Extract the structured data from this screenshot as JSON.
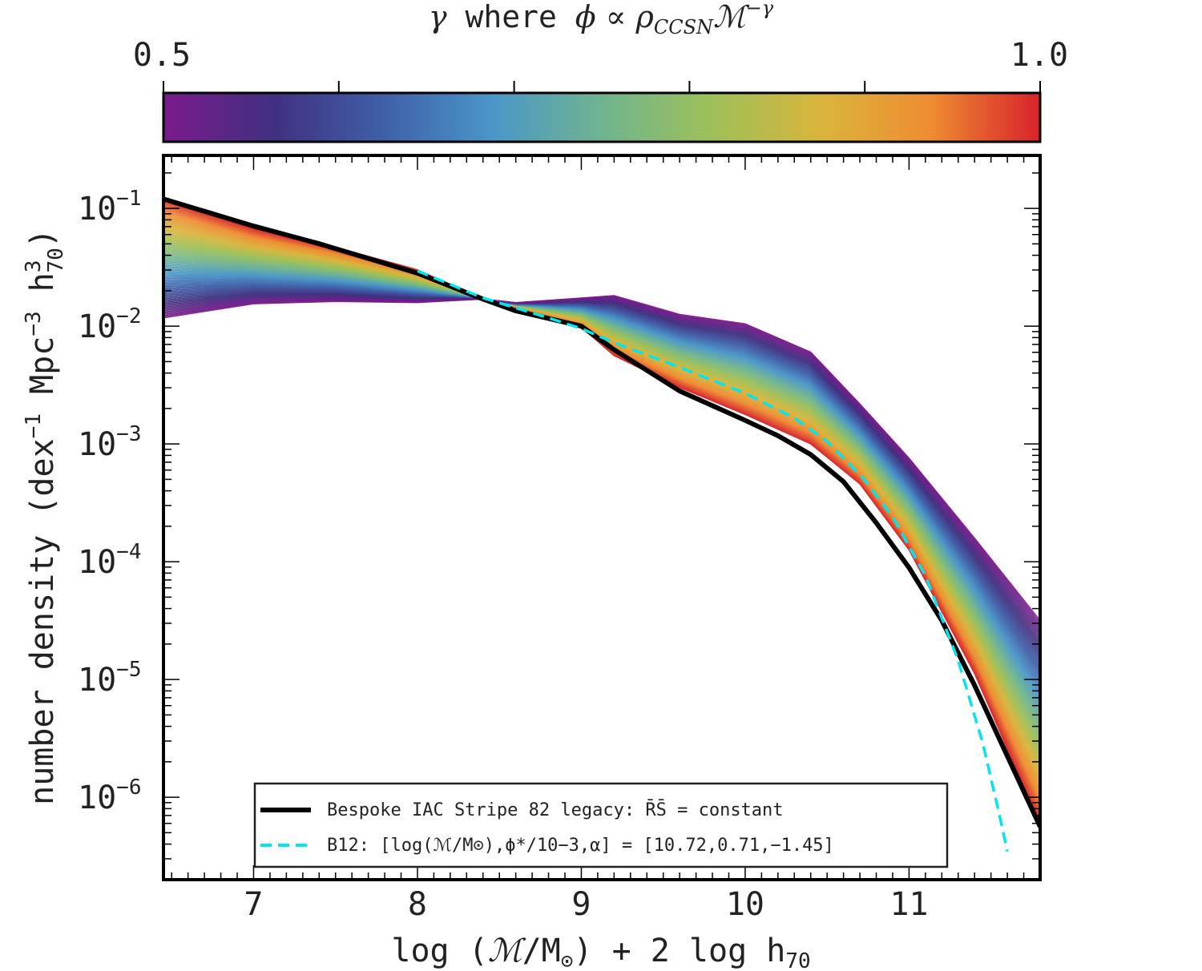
{
  "chart_data": {
    "type": "line",
    "xlabel": "log (ℳ/M⊙) + 2 log h70",
    "ylabel": "number density (dex−1 Mpc−3 h370)",
    "xlim": [
      6.45,
      11.8
    ],
    "ylim_log10": [
      -6.7,
      -0.55
    ],
    "y_scale": "log",
    "grid": false,
    "x_ticks": [
      {
        "v": 7,
        "label": "7"
      },
      {
        "v": 8,
        "label": "8"
      },
      {
        "v": 9,
        "label": "9"
      },
      {
        "v": 10,
        "label": "10"
      },
      {
        "v": 11,
        "label": "11"
      }
    ],
    "y_ticks": [
      {
        "exp": -1,
        "base": "10",
        "sup": "−1"
      },
      {
        "exp": -2,
        "base": "10",
        "sup": "−2"
      },
      {
        "exp": -3,
        "base": "10",
        "sup": "−3"
      },
      {
        "exp": -4,
        "base": "10",
        "sup": "−4"
      },
      {
        "exp": -5,
        "base": "10",
        "sup": "−5"
      },
      {
        "exp": -6,
        "base": "10",
        "sup": "−6"
      }
    ],
    "colorbar": {
      "label": "γ where ϕ ∝ ρCCSN ℳ−γ",
      "min": 0.5,
      "max": 1.0,
      "min_label": "0.5",
      "max_label": "1.0",
      "colormap": "Spectral_r",
      "stops": [
        "#7b1a8c",
        "#41307f",
        "#3f5fa8",
        "#4a96c8",
        "#6fb490",
        "#9dc058",
        "#d9b43c",
        "#ee8c32",
        "#d8222a"
      ]
    },
    "gamma_family_x": [
      6.45,
      7.0,
      7.5,
      8.0,
      8.4,
      8.6,
      9.0,
      9.2,
      9.6,
      10.0,
      10.4,
      10.7,
      11.0,
      11.4,
      11.8
    ],
    "gamma_family_y_at_gamma_1": [
      -0.91,
      -1.17,
      -1.33,
      -1.52,
      -1.77,
      -1.84,
      -2.01,
      -2.25,
      -2.52,
      -2.75,
      -3.0,
      -3.34,
      -3.9,
      -4.95,
      -6.23
    ],
    "gamma_family_y_at_gamma_0_5": [
      -1.93,
      -1.81,
      -1.79,
      -1.8,
      -1.77,
      -1.8,
      -1.76,
      -1.74,
      -1.9,
      -1.98,
      -2.22,
      -2.66,
      -3.12,
      -3.8,
      -4.5
    ],
    "series": [
      {
        "name": "Bespoke IAC Stripe 82 legacy: R̄S̄ = constant",
        "style": "solid",
        "color": "#000000",
        "x": [
          6.45,
          7.0,
          7.4,
          8.0,
          8.4,
          8.6,
          9.0,
          9.2,
          9.6,
          10.0,
          10.2,
          10.4,
          10.6,
          10.8,
          11.0,
          11.2,
          11.4,
          11.6,
          11.8
        ],
        "y": [
          -0.92,
          -1.15,
          -1.3,
          -1.55,
          -1.77,
          -1.87,
          -2.0,
          -2.2,
          -2.55,
          -2.8,
          -2.93,
          -3.09,
          -3.32,
          -3.67,
          -4.05,
          -4.5,
          -5.05,
          -5.65,
          -6.25
        ]
      },
      {
        "name": "B12: [log(ℳ/M⊙),ϕ*/10−3,α] = [10.72,0.71,−1.45]",
        "style": "dashed",
        "color": "#00e5ee",
        "x": [
          8.0,
          8.4,
          8.8,
          9.0,
          9.2,
          9.6,
          10.0,
          10.3,
          10.5,
          10.72,
          10.9,
          11.1,
          11.3,
          11.45,
          11.55,
          11.6
        ],
        "y": [
          -1.53,
          -1.76,
          -1.93,
          -2.02,
          -2.14,
          -2.35,
          -2.57,
          -2.78,
          -2.98,
          -3.29,
          -3.62,
          -4.12,
          -4.84,
          -5.54,
          -6.14,
          -6.46
        ]
      }
    ],
    "legend": {
      "placement": "lower-center",
      "entries": [
        "Bespoke IAC Stripe 82 legacy: R̄S̄ = constant",
        "B12: [log(ℳ/M⊙),ϕ*/10−3,α] = [10.72,0.71,−1.45]"
      ]
    }
  }
}
